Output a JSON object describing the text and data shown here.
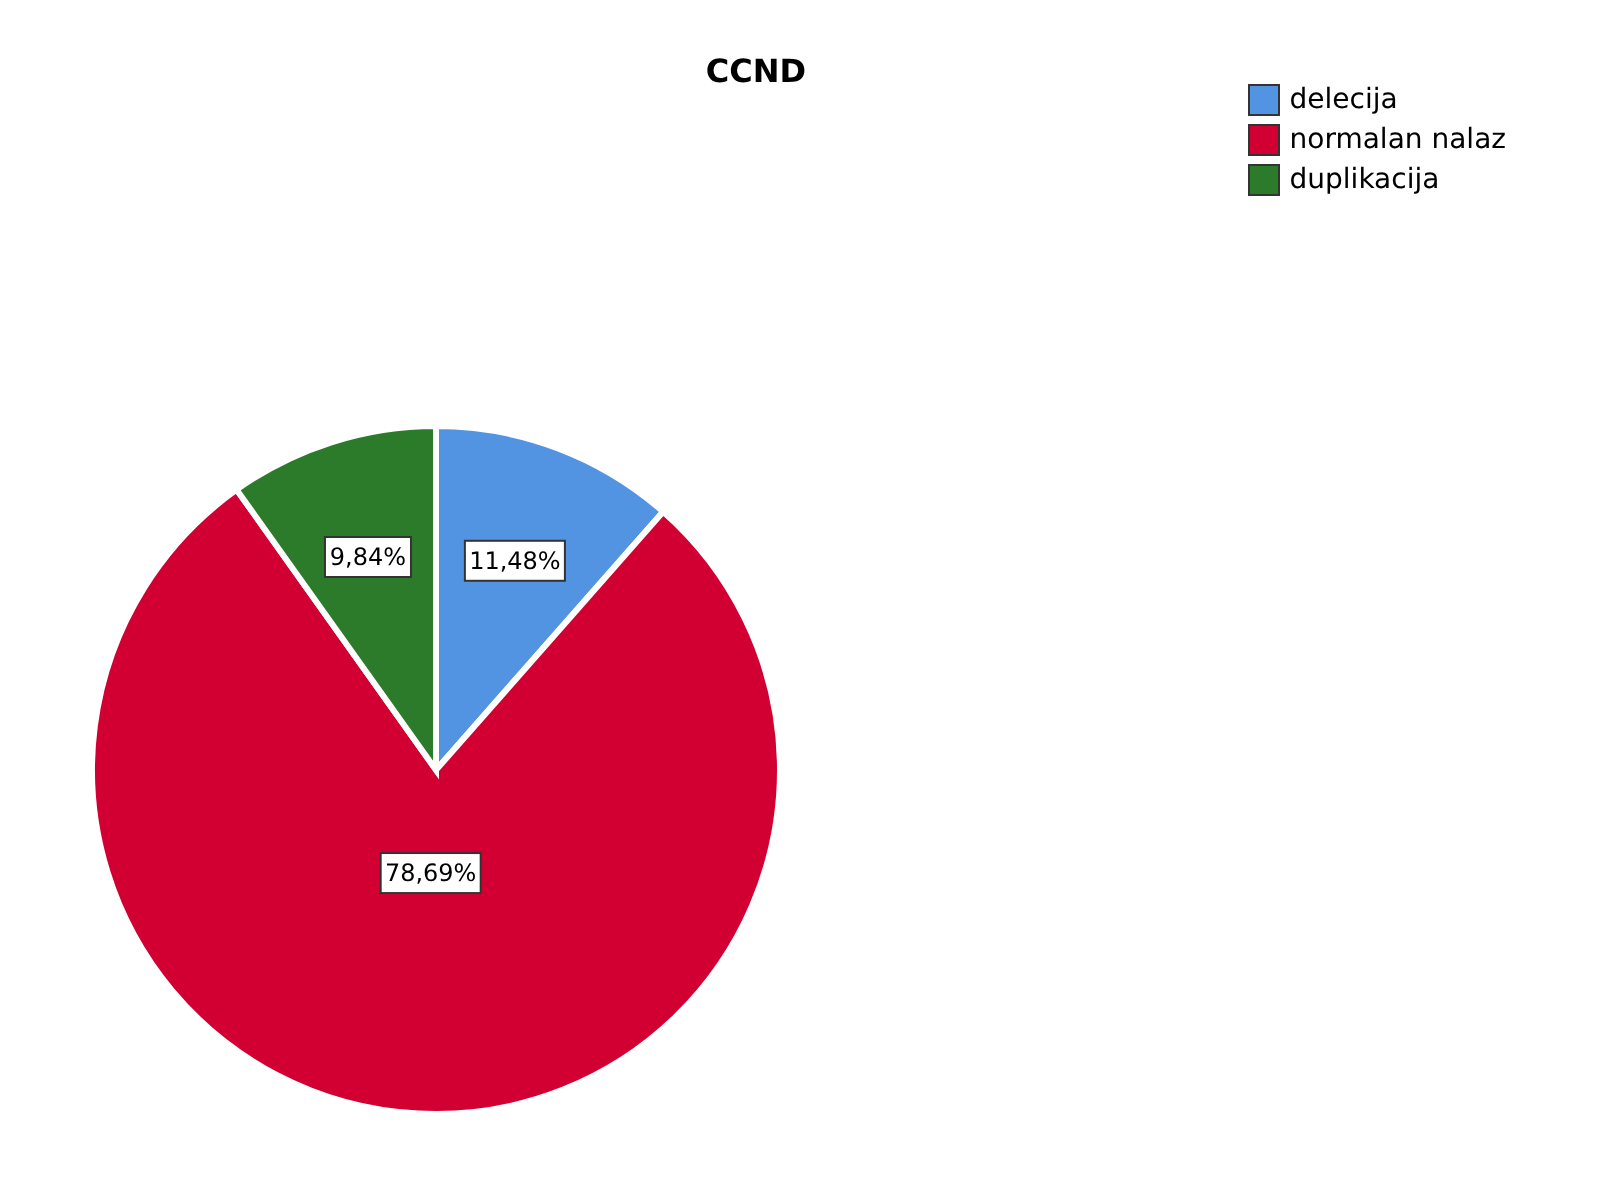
{
  "chart_data": {
    "type": "pie",
    "title": "CCND",
    "categories": [
      "delecija",
      "normalan nalaz",
      "duplikacija"
    ],
    "values": [
      11.48,
      78.69,
      9.84
    ],
    "colors": [
      "#5294e2",
      "#d20032",
      "#2b7b2b"
    ],
    "value_labels": [
      "11,48%",
      "78,69%",
      "9,84%"
    ],
    "legend": "top right"
  }
}
